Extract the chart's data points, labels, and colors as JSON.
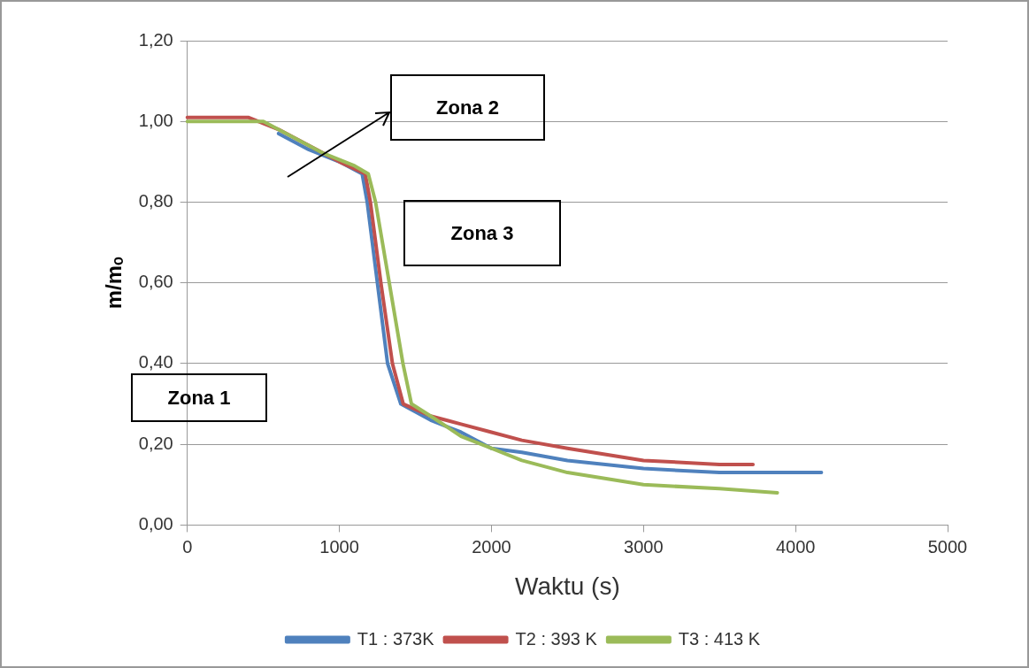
{
  "chart_data": {
    "type": "line",
    "xlabel": "Waktu (s)",
    "ylabel": "m/mₒ",
    "xlim": [
      0,
      5000
    ],
    "xticks": [
      0,
      1000,
      2000,
      3000,
      4000,
      5000
    ],
    "ylim": [
      0,
      1.2
    ],
    "yticks": [
      {
        "value": 0,
        "label": "0,00"
      },
      {
        "value": 0.2,
        "label": "0,20"
      },
      {
        "value": 0.4,
        "label": "0,40"
      },
      {
        "value": 0.6,
        "label": "0,60"
      },
      {
        "value": 0.8,
        "label": "0,80"
      },
      {
        "value": 1.0,
        "label": "1,00"
      },
      {
        "value": 1.2,
        "label": "1,20"
      }
    ],
    "grid": "y",
    "legend": "bottom",
    "marker": "none",
    "line_style": "solid",
    "series": [
      {
        "name": "T1 : 373K",
        "color": "#4f81bd",
        "x": [
          600,
          800,
          1000,
          1150,
          1183,
          1250,
          1317,
          1404,
          1600,
          1800,
          2000,
          2200,
          2500,
          3000,
          3500,
          4000,
          4170
        ],
        "values": [
          0.97,
          0.93,
          0.9,
          0.87,
          0.8,
          0.6,
          0.4,
          0.3,
          0.26,
          0.23,
          0.19,
          0.18,
          0.16,
          0.14,
          0.13,
          0.13,
          0.13
        ]
      },
      {
        "name": "T2 : 393 K",
        "color": "#c0504d",
        "x": [
          0,
          400,
          600,
          800,
          1000,
          1170,
          1204,
          1273,
          1349,
          1420,
          1600,
          1800,
          2000,
          2200,
          2500,
          3000,
          3500,
          3720
        ],
        "values": [
          1.01,
          1.01,
          0.98,
          0.94,
          0.9,
          0.87,
          0.8,
          0.6,
          0.4,
          0.3,
          0.27,
          0.25,
          0.23,
          0.21,
          0.19,
          0.16,
          0.15,
          0.15
        ]
      },
      {
        "name": "T3 : 413 K",
        "color": "#9bbb59",
        "x": [
          0,
          500,
          700,
          900,
          1100,
          1190,
          1238,
          1328,
          1418,
          1474,
          1600,
          1800,
          2000,
          2200,
          2500,
          3000,
          3500,
          3880
        ],
        "values": [
          1.0,
          1.0,
          0.96,
          0.92,
          0.89,
          0.87,
          0.8,
          0.6,
          0.4,
          0.3,
          0.27,
          0.22,
          0.19,
          0.16,
          0.13,
          0.1,
          0.09,
          0.08
        ]
      }
    ],
    "annotations": [
      "Zona 1",
      "Zona 2",
      "Zona 3"
    ]
  }
}
